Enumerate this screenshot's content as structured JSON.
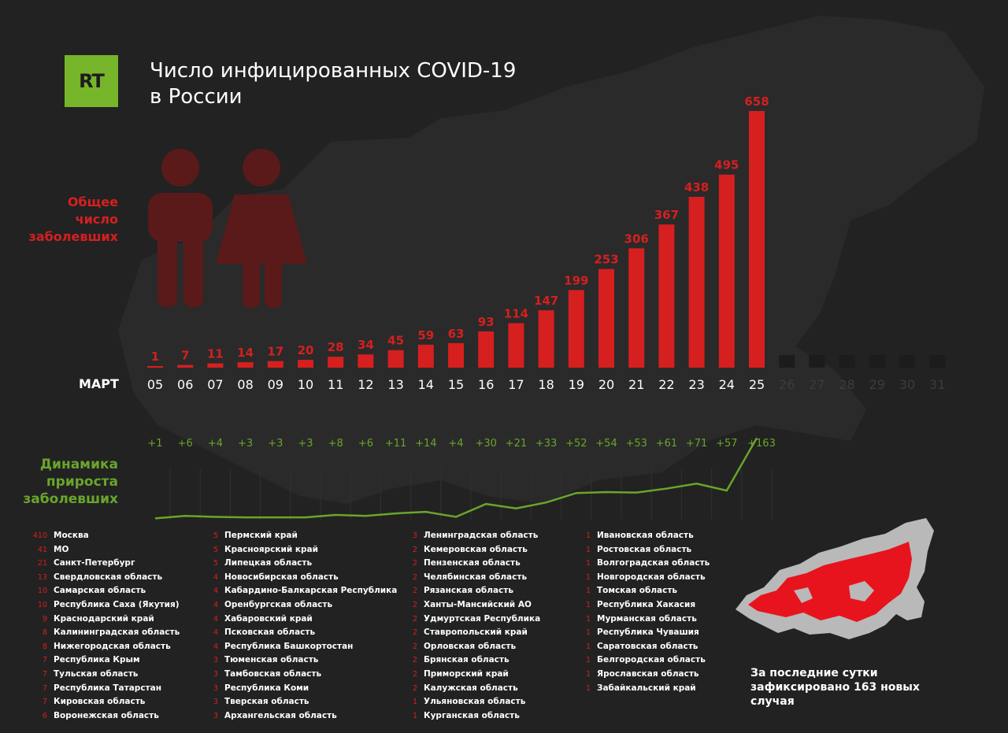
{
  "logo": {
    "text": "RT",
    "color": "#77b52a"
  },
  "title": {
    "line1": "Число инфицированных COVID-19",
    "line2": "в России"
  },
  "labels": {
    "total": [
      "Общее",
      "число",
      "заболевших"
    ],
    "growth": [
      "Динамика",
      "прироста",
      "заболевших"
    ],
    "month": "МАРТ"
  },
  "colors": {
    "bar": "#d61f1f",
    "line": "#6aa52b",
    "future_bar": "#1c1c1c",
    "future_text": "#3c3c3c"
  },
  "chart_data": {
    "type": "bar",
    "categories": [
      "05",
      "06",
      "07",
      "08",
      "09",
      "10",
      "11",
      "12",
      "13",
      "14",
      "15",
      "16",
      "17",
      "18",
      "19",
      "20",
      "21",
      "22",
      "23",
      "24",
      "25",
      "26",
      "27",
      "28",
      "29",
      "30",
      "31"
    ],
    "series": [
      {
        "values": [
          1,
          7,
          11,
          14,
          17,
          20,
          28,
          34,
          45,
          59,
          63,
          93,
          114,
          147,
          199,
          253,
          306,
          367,
          438,
          495,
          658,
          null,
          null,
          null,
          null,
          null,
          null
        ]
      }
    ],
    "growth_labels": [
      "+1",
      "+6",
      "+4",
      "+3",
      "+3",
      "+3",
      "+8",
      "+6",
      "+11",
      "+14",
      "+4",
      "+30",
      "+21",
      "+33",
      "+52",
      "+54",
      "+53",
      "+61",
      "+71",
      "+57",
      "+163"
    ],
    "growth_values": [
      1,
      6,
      4,
      3,
      3,
      3,
      8,
      6,
      11,
      14,
      4,
      30,
      21,
      33,
      52,
      54,
      53,
      61,
      71,
      57,
      163
    ],
    "legend": "none"
  },
  "regions": [
    [
      {
        "n": "410",
        "name": "Москва"
      },
      {
        "n": "41",
        "name": "МО"
      },
      {
        "n": "21",
        "name": "Санкт-Петербург"
      },
      {
        "n": "13",
        "name": "Свердловская область"
      },
      {
        "n": "10",
        "name": "Самарская область"
      },
      {
        "n": "10",
        "name": "Республика Саха (Якутия)"
      },
      {
        "n": "9",
        "name": "Краснодарский край"
      },
      {
        "n": "8",
        "name": "Калининградская область"
      },
      {
        "n": "8",
        "name": "Нижегородская область"
      },
      {
        "n": "7",
        "name": "Республика Крым"
      },
      {
        "n": "7",
        "name": "Тульская область"
      },
      {
        "n": "7",
        "name": "Республика Татарстан"
      },
      {
        "n": "7",
        "name": "Кировская область"
      },
      {
        "n": "6",
        "name": "Воронежская область"
      }
    ],
    [
      {
        "n": "5",
        "name": "Пермский край"
      },
      {
        "n": "5",
        "name": "Красноярский край"
      },
      {
        "n": "5",
        "name": "Липецкая область"
      },
      {
        "n": "4",
        "name": "Новосибирская область"
      },
      {
        "n": "4",
        "name": "Кабардино-Балкарская Республика"
      },
      {
        "n": "4",
        "name": "Оренбургская область"
      },
      {
        "n": "4",
        "name": "Хабаровский край"
      },
      {
        "n": "4",
        "name": "Псковская область"
      },
      {
        "n": "4",
        "name": "Республика Башкортостан"
      },
      {
        "n": "3",
        "name": "Тюменская область"
      },
      {
        "n": "3",
        "name": "Тамбовская область"
      },
      {
        "n": "3",
        "name": "Республика Коми"
      },
      {
        "n": "3",
        "name": "Тверская область"
      },
      {
        "n": "3",
        "name": "Архангельская область"
      }
    ],
    [
      {
        "n": "3",
        "name": "Ленинградская область"
      },
      {
        "n": "2",
        "name": "Кемеровская область"
      },
      {
        "n": "2",
        "name": "Пензенская область"
      },
      {
        "n": "2",
        "name": "Челябинская область"
      },
      {
        "n": "2",
        "name": "Рязанская область"
      },
      {
        "n": "2",
        "name": "Ханты-Мансийский АО"
      },
      {
        "n": "2",
        "name": "Удмуртская Республика"
      },
      {
        "n": "2",
        "name": "Ставропольский край"
      },
      {
        "n": "2",
        "name": "Орловская область"
      },
      {
        "n": "2",
        "name": "Брянская область"
      },
      {
        "n": "2",
        "name": "Приморский край"
      },
      {
        "n": "2",
        "name": "Калужская область"
      },
      {
        "n": "1",
        "name": "Ульяновская область"
      },
      {
        "n": "1",
        "name": "Курганская область"
      }
    ],
    [
      {
        "n": "1",
        "name": "Ивановская область"
      },
      {
        "n": "1",
        "name": "Ростовская область"
      },
      {
        "n": "1",
        "name": "Волгоградская область"
      },
      {
        "n": "1",
        "name": "Новгородская область"
      },
      {
        "n": "1",
        "name": "Томская область"
      },
      {
        "n": "1",
        "name": "Республика Хакасия"
      },
      {
        "n": "1",
        "name": "Мурманская область"
      },
      {
        "n": "1",
        "name": "Республика Чувашия"
      },
      {
        "n": "1",
        "name": "Саратовская область"
      },
      {
        "n": "1",
        "name": "Белгородская область"
      },
      {
        "n": "1",
        "name": "Ярославская область"
      },
      {
        "n": "1",
        "name": "Забайкальский край"
      }
    ]
  ],
  "footnote": "За последние сутки зафиксировано 163 новых случая"
}
